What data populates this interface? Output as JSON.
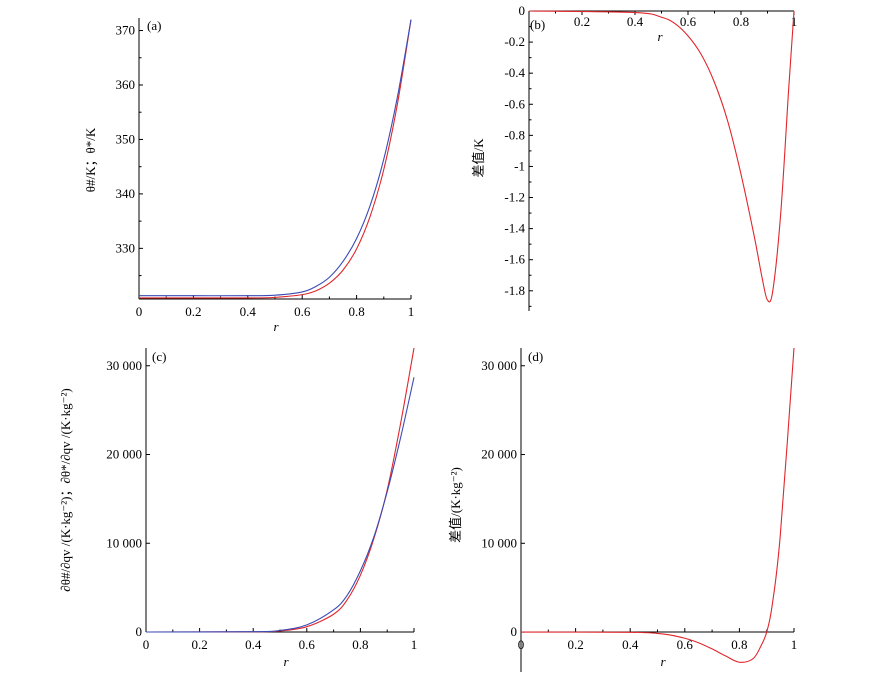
{
  "colors": {
    "series_red": "#e0262b",
    "series_blue": "#3a4bb5",
    "axis": "#000000"
  },
  "chart_data": [
    {
      "panel_label": "(a)",
      "type": "line",
      "xlabel": "r",
      "ylabel": "θ#/K；θ*/K",
      "xlim": [
        0,
        1
      ],
      "ylim": [
        320.7,
        372.3
      ],
      "x_ticks": [
        "0",
        "0.2",
        "0.4",
        "0.6",
        "0.8",
        "1"
      ],
      "y_ticks": [
        "330",
        "340",
        "350",
        "360",
        "370"
      ],
      "x_axis_position": "bottom",
      "series": [
        {
          "color": "red",
          "x": [
            0,
            0.2,
            0.4,
            0.5,
            0.6,
            0.65,
            0.7,
            0.75,
            0.8,
            0.85,
            0.9,
            0.95,
            1.0
          ],
          "y": [
            320.9,
            320.9,
            320.9,
            321.0,
            321.5,
            322.2,
            323.6,
            326.0,
            329.9,
            335.9,
            344.5,
            356.5,
            372.0
          ]
        },
        {
          "color": "blue",
          "x": [
            0,
            0.2,
            0.4,
            0.5,
            0.6,
            0.65,
            0.7,
            0.75,
            0.8,
            0.85,
            0.9,
            0.95,
            1.0
          ],
          "y": [
            321.3,
            321.3,
            321.3,
            321.4,
            322.0,
            323.0,
            324.7,
            327.6,
            331.8,
            337.9,
            346.4,
            357.8,
            372.0
          ]
        }
      ]
    },
    {
      "panel_label": "(b)",
      "type": "line",
      "xlabel": "r",
      "ylabel": "差值/K",
      "xlim": [
        0,
        1
      ],
      "ylim": [
        -1.93,
        0
      ],
      "x_ticks": [
        "0.2",
        "0.4",
        "0.6",
        "0.8",
        "1"
      ],
      "y_ticks": [
        "0",
        "-0.2",
        "-0.4",
        "-0.6",
        "-0.8",
        "-1",
        "-1.2",
        "-1.4",
        "-1.6",
        "-1.8"
      ],
      "x_axis_position": "top",
      "series": [
        {
          "color": "red",
          "x": [
            0,
            0.4,
            0.5,
            0.55,
            0.6,
            0.65,
            0.7,
            0.75,
            0.8,
            0.85,
            0.88,
            0.9,
            0.92,
            0.95,
            0.98,
            1.0
          ],
          "y": [
            0,
            -0.01,
            -0.04,
            -0.08,
            -0.16,
            -0.28,
            -0.46,
            -0.71,
            -1.05,
            -1.45,
            -1.72,
            -1.86,
            -1.8,
            -1.3,
            -0.5,
            0
          ]
        }
      ]
    },
    {
      "panel_label": "(c)",
      "type": "line",
      "xlabel": "r",
      "ylabel": "∂θ#/∂qv /(K·kg⁻²)；∂θ*/∂qv /(K·kg⁻²)",
      "xlim": [
        0,
        1
      ],
      "ylim": [
        0,
        32000
      ],
      "x_ticks": [
        "0",
        "0.2",
        "0.4",
        "0.6",
        "0.8",
        "1"
      ],
      "y_ticks": [
        "0",
        "10 000",
        "20 000",
        "30 000"
      ],
      "x_axis_position": "bottom",
      "series": [
        {
          "color": "red",
          "x": [
            0,
            0.4,
            0.5,
            0.6,
            0.7,
            0.75,
            0.8,
            0.85,
            0.9,
            0.95,
            1.0
          ],
          "y": [
            0,
            20,
            120,
            600,
            2000,
            3600,
            6400,
            10500,
            16000,
            23500,
            32000
          ]
        },
        {
          "color": "blue",
          "x": [
            0,
            0.4,
            0.5,
            0.6,
            0.7,
            0.75,
            0.8,
            0.85,
            0.9,
            0.95,
            1.0
          ],
          "y": [
            0,
            30,
            180,
            800,
            2500,
            4100,
            6900,
            10700,
            15800,
            21900,
            28700
          ]
        }
      ]
    },
    {
      "panel_label": "(d)",
      "type": "line",
      "xlabel": "r",
      "ylabel": "差值/(K·kg⁻²)",
      "xlim": [
        0,
        1
      ],
      "ylim": [
        -4500,
        32000
      ],
      "x_ticks": [
        "0",
        "0.2",
        "0.4",
        "0.6",
        "0.8",
        "1"
      ],
      "y_ticks": [
        "0",
        "10 000",
        "20 000",
        "30 000"
      ],
      "x_axis_position": "zero",
      "series": [
        {
          "color": "red",
          "x": [
            0,
            0.4,
            0.5,
            0.55,
            0.6,
            0.65,
            0.7,
            0.75,
            0.8,
            0.85,
            0.88,
            0.9,
            0.92,
            0.95,
            1.0
          ],
          "y": [
            0,
            -30,
            -150,
            -350,
            -700,
            -1200,
            -1900,
            -2700,
            -3400,
            -3000,
            -1500,
            0,
            3000,
            11000,
            32000
          ]
        }
      ]
    }
  ]
}
